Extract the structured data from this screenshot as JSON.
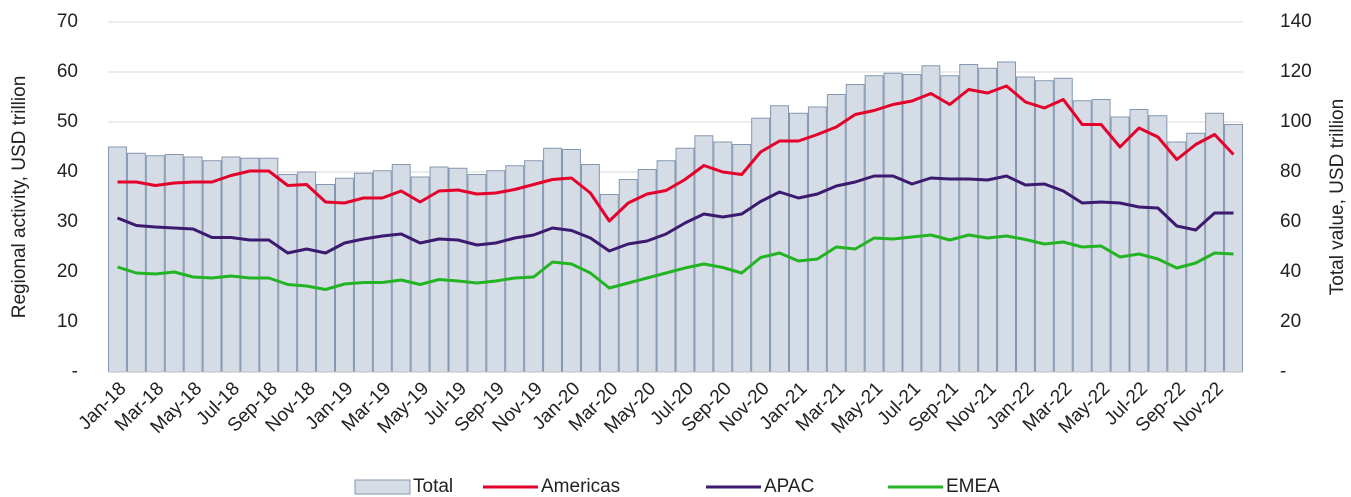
{
  "chart_data": {
    "type": "combo",
    "ylabel": "Regional activity, USD trillion",
    "y2label": "Total value, USD trillion",
    "categories": [
      "Jan-18",
      null,
      "Mar-18",
      null,
      "May-18",
      null,
      "Jul-18",
      null,
      "Sep-18",
      null,
      "Nov-18",
      null,
      "Jan-19",
      null,
      "Mar-19",
      null,
      "May-19",
      null,
      "Jul-19",
      null,
      "Sep-19",
      null,
      "Nov-19",
      null,
      "Jan-20",
      null,
      "Mar-20",
      null,
      "May-20",
      null,
      "Jul-20",
      null,
      "Sep-20",
      null,
      "Nov-20",
      null,
      "Jan-21",
      null,
      "Mar-21",
      null,
      "May-21",
      null,
      "Jul-21",
      null,
      "Sep-21",
      null,
      "Nov-21",
      null,
      "Jan-22",
      null,
      "Mar-22",
      null,
      "May-22",
      null,
      "Jul-22",
      null,
      "Sep-22",
      null,
      "Nov-22",
      null
    ],
    "series": [
      {
        "name": "Total",
        "type": "bar",
        "axis": "y2",
        "color": "#d6dce5",
        "edgecolor": "#8497b0",
        "values": [
          90,
          87.5,
          86.5,
          87,
          86,
          84.5,
          86,
          85.5,
          85.5,
          79,
          80,
          75,
          77.5,
          79.5,
          80.5,
          83,
          78,
          82,
          81.5,
          79,
          80.5,
          82.5,
          84.5,
          89.5,
          89,
          83,
          71,
          77,
          81,
          84.5,
          89.5,
          94.5,
          92,
          91,
          101.5,
          106.5,
          103.5,
          106,
          111,
          115,
          118.5,
          119.5,
          119,
          122.5,
          118.5,
          123,
          121.5,
          124,
          118,
          116.5,
          117.5,
          108.5,
          109,
          102,
          105,
          102.5,
          92,
          95.5,
          103.5,
          99
        ]
      },
      {
        "name": "Americas",
        "type": "line",
        "color": "#e4002b",
        "values": [
          38,
          38,
          37.3,
          37.8,
          38,
          38,
          39.3,
          40.2,
          40.2,
          37.3,
          37.5,
          34,
          33.8,
          34.8,
          34.8,
          36.2,
          34,
          36.2,
          36.4,
          35.6,
          35.8,
          36.5,
          37.5,
          38.5,
          38.8,
          35.8,
          30.2,
          33.8,
          35.6,
          36.3,
          38.5,
          41.3,
          40,
          39.5,
          44,
          46.2,
          46.2,
          47.5,
          49,
          51.5,
          52.3,
          53.5,
          54.2,
          55.7,
          53.5,
          56.5,
          55.8,
          57.2,
          54,
          52.8,
          54.5,
          49.5,
          49.5,
          45,
          48.8,
          47,
          42.5,
          45.5,
          47.5,
          43.5
        ]
      },
      {
        "name": "APAC",
        "type": "line",
        "color": "#3c1a70",
        "values": [
          30.8,
          29.3,
          29,
          28.8,
          28.6,
          26.9,
          26.9,
          26.4,
          26.4,
          23.8,
          24.6,
          23.8,
          25.8,
          26.6,
          27.2,
          27.6,
          25.8,
          26.6,
          26.4,
          25.4,
          25.8,
          26.8,
          27.4,
          28.8,
          28.3,
          26.8,
          24.2,
          25.6,
          26.2,
          27.6,
          29.8,
          31.6,
          31,
          31.6,
          34.1,
          36,
          34.8,
          35.6,
          37.2,
          38,
          39.2,
          39.2,
          37.6,
          38.8,
          38.6,
          38.6,
          38.4,
          39.2,
          37.4,
          37.6,
          36.2,
          33.8,
          34,
          33.8,
          33,
          32.8,
          29.2,
          28.4,
          31.8,
          31.8
        ]
      },
      {
        "name": "EMEA",
        "type": "line",
        "color": "#22b422",
        "values": [
          21,
          19.8,
          19.6,
          20,
          19,
          18.8,
          19.2,
          18.8,
          18.8,
          17.5,
          17.2,
          16.5,
          17.6,
          17.9,
          17.9,
          18.4,
          17.5,
          18.5,
          18.2,
          17.8,
          18.2,
          18.8,
          19,
          22,
          21.6,
          19.8,
          16.8,
          17.8,
          18.8,
          19.8,
          20.8,
          21.6,
          20.9,
          19.8,
          22.9,
          23.8,
          22.2,
          22.6,
          25,
          24.6,
          26.8,
          26.6,
          27,
          27.4,
          26.4,
          27.4,
          26.8,
          27.2,
          26.5,
          25.6,
          26,
          25,
          25.2,
          23,
          23.6,
          22.6,
          20.8,
          21.8,
          23.8,
          23.6
        ]
      }
    ],
    "ylim": [
      0,
      70
    ],
    "yticks": [
      {
        "value": 0,
        "label": "-"
      },
      10,
      20,
      30,
      40,
      50,
      60,
      70
    ],
    "y2lim": [
      0,
      140
    ],
    "y2ticks": [
      {
        "value": 0,
        "label": "-"
      },
      20,
      40,
      60,
      80,
      100,
      120,
      140
    ],
    "grid": true,
    "legend": "bottom"
  }
}
